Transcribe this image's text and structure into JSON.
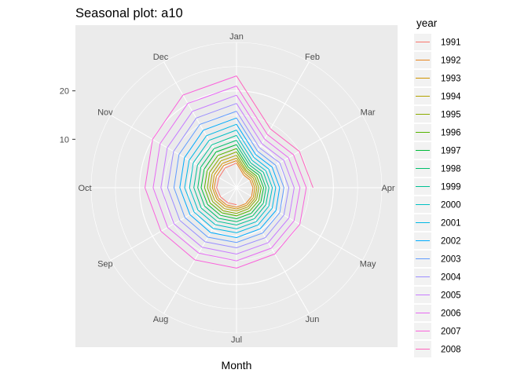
{
  "chart_data": {
    "type": "line",
    "coord": "polar",
    "title": "Seasonal plot: a10",
    "xlabel": "Month",
    "ylabel": "",
    "categories": [
      "Jan",
      "Feb",
      "Mar",
      "Apr",
      "May",
      "Jun",
      "Jul",
      "Aug",
      "Sep",
      "Oct",
      "Nov",
      "Dec"
    ],
    "r_ticks": [
      10,
      20
    ],
    "r_range": [
      0,
      30
    ],
    "legend": {
      "title": "year",
      "position": "right"
    },
    "panel_background": "#ebebeb",
    "grid_color": "#ffffff",
    "series": [
      {
        "name": "1991",
        "color": "#F8766D",
        "values": [
          null,
          null,
          null,
          null,
          null,
          null,
          3.5,
          3.6,
          3.8,
          4.1,
          4.2,
          4.7
        ]
      },
      {
        "name": "1992",
        "color": "#E7851E",
        "values": [
          5.1,
          3.0,
          3.2,
          3.4,
          3.6,
          3.8,
          4.0,
          4.1,
          4.3,
          4.6,
          4.8,
          5.3
        ]
      },
      {
        "name": "1993",
        "color": "#D09400",
        "values": [
          5.6,
          3.4,
          3.6,
          3.8,
          4.0,
          4.2,
          4.4,
          4.5,
          4.7,
          5.0,
          5.3,
          5.8
        ]
      },
      {
        "name": "1994",
        "color": "#B2A100",
        "values": [
          6.1,
          3.8,
          4.0,
          4.2,
          4.4,
          4.6,
          4.8,
          5.0,
          5.2,
          5.5,
          5.8,
          6.4
        ]
      },
      {
        "name": "1995",
        "color": "#8BAB00",
        "values": [
          6.7,
          4.1,
          4.4,
          4.6,
          4.8,
          5.0,
          5.3,
          5.5,
          5.7,
          6.0,
          6.4,
          7.0
        ]
      },
      {
        "name": "1996",
        "color": "#55B400",
        "values": [
          7.4,
          4.5,
          4.8,
          5.1,
          5.3,
          5.5,
          5.8,
          6.0,
          6.3,
          6.6,
          7.0,
          7.7
        ]
      },
      {
        "name": "1997",
        "color": "#00BA38",
        "values": [
          8.1,
          4.9,
          5.3,
          5.6,
          5.8,
          6.1,
          6.4,
          6.6,
          6.9,
          7.3,
          7.7,
          8.5
        ]
      },
      {
        "name": "1998",
        "color": "#00BE6C",
        "values": [
          8.9,
          5.4,
          5.8,
          6.1,
          6.4,
          6.7,
          7.0,
          7.3,
          7.6,
          8.0,
          8.5,
          9.3
        ]
      },
      {
        "name": "1999",
        "color": "#00C094",
        "values": [
          9.8,
          5.9,
          6.4,
          6.7,
          7.0,
          7.4,
          7.7,
          8.0,
          8.4,
          8.8,
          9.3,
          10.2
        ]
      },
      {
        "name": "2000",
        "color": "#00BFC4",
        "values": [
          10.8,
          6.5,
          7.0,
          7.4,
          7.7,
          8.1,
          8.5,
          8.8,
          9.2,
          9.7,
          10.3,
          11.3
        ]
      },
      {
        "name": "2001",
        "color": "#00B8E5",
        "values": [
          11.9,
          7.2,
          7.7,
          8.1,
          8.5,
          8.9,
          9.3,
          9.7,
          10.1,
          10.7,
          11.3,
          12.4
        ]
      },
      {
        "name": "2002",
        "color": "#00ABFD",
        "values": [
          13.1,
          7.9,
          8.5,
          8.9,
          9.4,
          9.8,
          10.3,
          10.7,
          11.1,
          11.7,
          12.4,
          13.7
        ]
      },
      {
        "name": "2003",
        "color": "#619CFF",
        "values": [
          14.4,
          8.7,
          9.3,
          9.8,
          10.3,
          10.8,
          11.3,
          11.8,
          12.3,
          12.9,
          13.7,
          15.1
        ]
      },
      {
        "name": "2004",
        "color": "#9B8EFF",
        "values": [
          15.8,
          9.5,
          10.3,
          10.8,
          11.3,
          11.9,
          12.4,
          12.9,
          13.5,
          14.2,
          15.0,
          16.6
        ]
      },
      {
        "name": "2005",
        "color": "#C77CFF",
        "values": [
          17.4,
          10.5,
          11.3,
          11.9,
          12.5,
          13.1,
          13.7,
          14.2,
          14.9,
          15.6,
          16.5,
          18.2
        ]
      },
      {
        "name": "2006",
        "color": "#E76BF3",
        "values": [
          19.1,
          11.6,
          12.4,
          13.1,
          13.7,
          14.4,
          15.1,
          15.6,
          16.4,
          17.2,
          18.2,
          20.1
        ]
      },
      {
        "name": "2007",
        "color": "#FA62DB",
        "values": [
          21.0,
          12.7,
          13.6,
          14.4,
          15.1,
          15.8,
          16.6,
          17.2,
          18.0,
          18.9,
          20.0,
          22.1
        ]
      },
      {
        "name": "2008",
        "color": "#FF62BC",
        "values": [
          23.1,
          14.0,
          15.0,
          15.8,
          null,
          null,
          null,
          null,
          null,
          null,
          null,
          null
        ]
      }
    ]
  }
}
